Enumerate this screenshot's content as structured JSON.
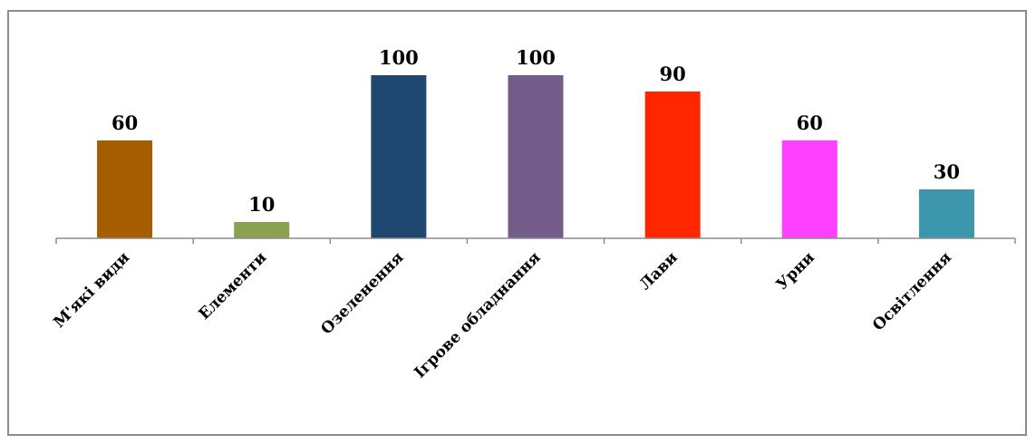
{
  "chart_data": {
    "type": "bar",
    "categories": [
      "М'які види",
      "Елементи",
      "Озеленення",
      "Ігрове обладнання",
      "Лави",
      "Урни",
      "Освітлення"
    ],
    "values": [
      60,
      10,
      100,
      100,
      90,
      60,
      30
    ],
    "colors": [
      "#A65C00",
      "#8AA14F",
      "#1F4770",
      "#745C8A",
      "#FF2600",
      "#FF40FF",
      "#3C97AC"
    ],
    "title": "",
    "xlabel": "",
    "ylabel": "",
    "ylim": [
      0,
      100
    ],
    "grid": false,
    "legend": "none"
  }
}
